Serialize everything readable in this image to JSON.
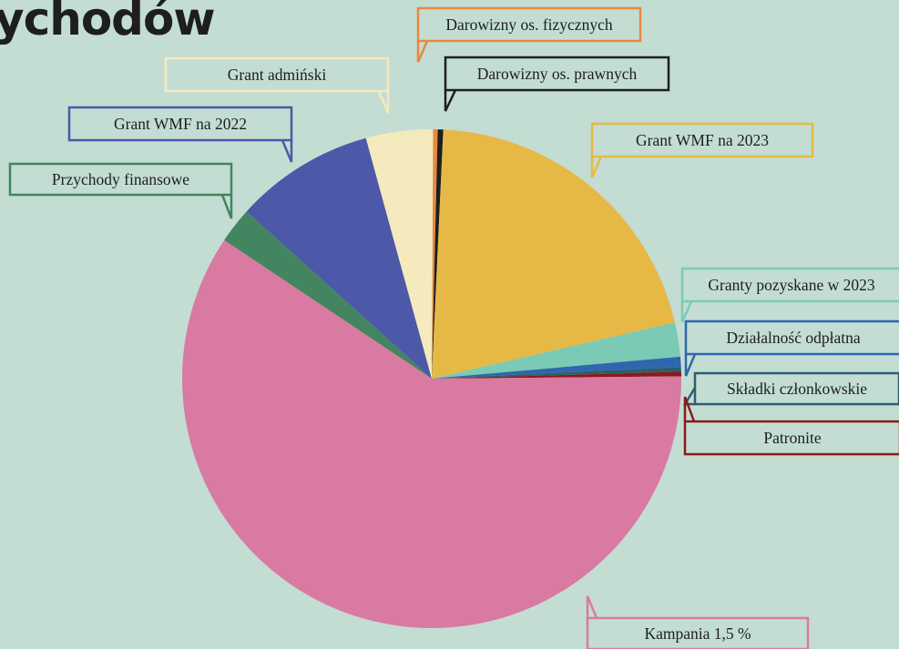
{
  "title": "ychodów",
  "chart_data": {
    "type": "pie",
    "title": "ychodów",
    "legend": "none",
    "slices": [
      {
        "label": "Darowizny os. fizycznych",
        "value": 0.3,
        "color": "#e8893f"
      },
      {
        "label": "Darowizny os. prawnych",
        "value": 0.35,
        "color": "#1e1e1e"
      },
      {
        "label": "Grant WMF na 2023",
        "value": 20.5,
        "color": "#e6b947"
      },
      {
        "label": "Granty pozyskane w 2023",
        "value": 2.2,
        "color": "#7bcab5"
      },
      {
        "label": "Działalność odpłatna",
        "value": 0.65,
        "color": "#2e67ad"
      },
      {
        "label": "Składki członkowskie",
        "value": 0.3,
        "color": "#2e5e6e"
      },
      {
        "label": "Patronite",
        "value": 0.3,
        "color": "#8b1a1a"
      },
      {
        "label": "Kampania 1,5 %",
        "value": 59.1,
        "color": "#d97aa3"
      },
      {
        "label": "Przychody finansowe",
        "value": 2.3,
        "color": "#428560"
      },
      {
        "label": "Grant WMF na 2022",
        "value": 9.0,
        "color": "#4d58a8"
      },
      {
        "label": "Grant admiński",
        "value": 4.3,
        "color": "#f4eabd"
      }
    ]
  }
}
